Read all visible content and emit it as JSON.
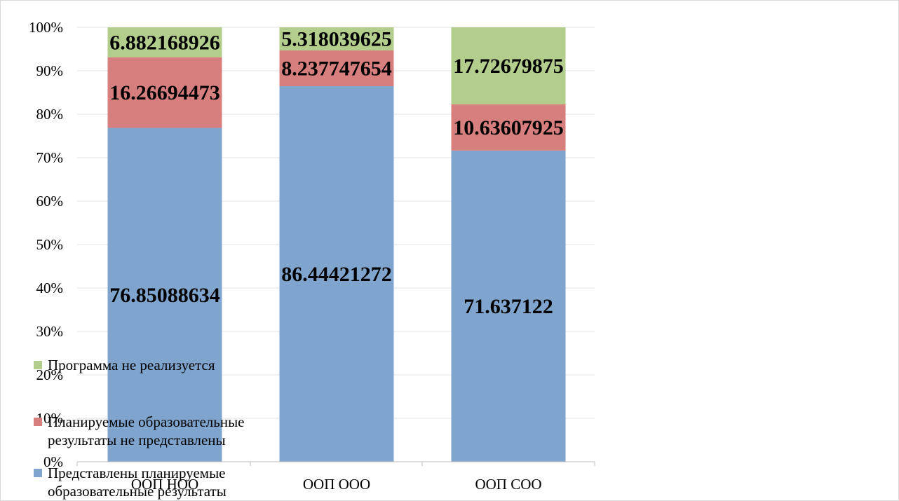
{
  "chart_data": {
    "type": "bar",
    "stacked": true,
    "categories": [
      "ООП НОО",
      "ООП ООО",
      "ООП СОО"
    ],
    "ylim": [
      0,
      100
    ],
    "yticks": [
      "0%",
      "10%",
      "20%",
      "30%",
      "40%",
      "50%",
      "60%",
      "70%",
      "80%",
      "90%",
      "100%"
    ],
    "grid": true,
    "legend_position": "bottom-left",
    "series": [
      {
        "name": "Представлены планируемые образовательные результаты",
        "color": "#7fa5cf",
        "values": [
          76.85088634,
          86.44421272,
          71.637122
        ],
        "labels": [
          "76.85088634",
          "86.44421272",
          "71.637122"
        ]
      },
      {
        "name": "Планируемые образовательные результаты не представлены",
        "color": "#d77f7e",
        "values": [
          16.26694473,
          8.237747654,
          10.63607925
        ],
        "labels": [
          "16.26694473",
          "8.237747654",
          "10.63607925"
        ]
      },
      {
        "name": "Программа не реализуется",
        "color": "#b3cd8c",
        "values": [
          6.882168926,
          5.318039625,
          17.72679875
        ],
        "labels": [
          "6.882168926",
          "5.318039625",
          "17.72679875"
        ]
      }
    ]
  }
}
